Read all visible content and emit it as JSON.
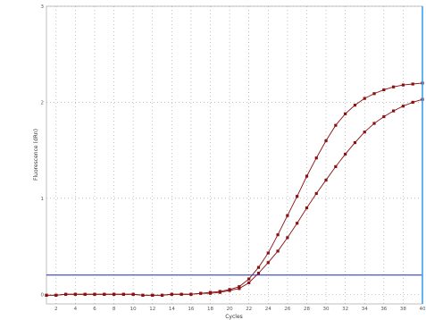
{
  "chart_data": {
    "type": "line",
    "title": "",
    "xlabel": "Cycles",
    "ylabel": "Fluorescence (dRn)",
    "xlim": [
      1,
      40
    ],
    "ylim": [
      -0.1,
      3
    ],
    "x_ticks": [
      2,
      4,
      6,
      8,
      10,
      12,
      14,
      16,
      18,
      20,
      22,
      24,
      26,
      28,
      30,
      32,
      34,
      36,
      38,
      40
    ],
    "y_ticks": [
      0,
      1,
      2,
      3
    ],
    "grid": true,
    "legend": "none",
    "threshold": 0.2,
    "threshold_color": "#1c2bb8",
    "cursor_x": 40,
    "cursor_color": "#3ea2f0",
    "series_color": "#8b1010",
    "series": [
      {
        "x": [
          1,
          2,
          3,
          4,
          5,
          6,
          7,
          8,
          9,
          10,
          11,
          12,
          13,
          14,
          15,
          16,
          17,
          18,
          19,
          20,
          21,
          22,
          23,
          24,
          25,
          26,
          27,
          28,
          29,
          30,
          31,
          32,
          33,
          34,
          35,
          36,
          37,
          38,
          39,
          40
        ],
        "values": [
          -0.01,
          -0.01,
          0,
          0,
          0,
          0,
          0,
          0,
          0,
          0,
          -0.01,
          -0.01,
          -0.01,
          0,
          0,
          0,
          0.01,
          0.02,
          0.03,
          0.05,
          0.08,
          0.16,
          0.28,
          0.43,
          0.62,
          0.82,
          1.02,
          1.23,
          1.42,
          1.6,
          1.76,
          1.88,
          1.97,
          2.04,
          2.09,
          2.13,
          2.16,
          2.18,
          2.19,
          2.2
        ]
      },
      {
        "x": [
          1,
          2,
          3,
          4,
          5,
          6,
          7,
          8,
          9,
          10,
          11,
          12,
          13,
          14,
          15,
          16,
          17,
          18,
          19,
          20,
          21,
          22,
          23,
          24,
          25,
          26,
          27,
          28,
          29,
          30,
          31,
          32,
          33,
          34,
          35,
          36,
          37,
          38,
          39,
          40
        ],
        "values": [
          -0.01,
          -0.01,
          0,
          0,
          0,
          0,
          0,
          0,
          0,
          0,
          -0.01,
          -0.01,
          -0.01,
          0,
          0,
          0,
          0.01,
          0.01,
          0.02,
          0.04,
          0.06,
          0.12,
          0.22,
          0.33,
          0.45,
          0.59,
          0.74,
          0.9,
          1.05,
          1.19,
          1.33,
          1.46,
          1.58,
          1.69,
          1.78,
          1.85,
          1.91,
          1.96,
          2.0,
          2.03
        ]
      }
    ]
  }
}
